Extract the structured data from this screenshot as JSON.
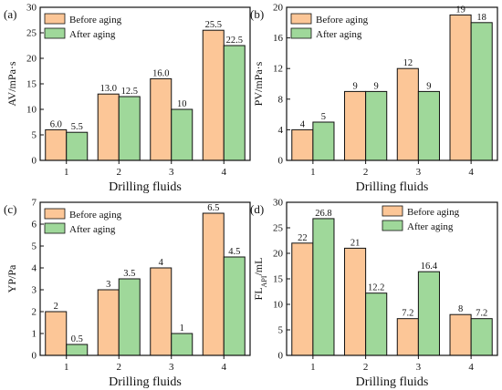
{
  "colors": {
    "before": "#FCC697",
    "after": "#9FD89A",
    "frame": "#111111"
  },
  "chart_data": [
    {
      "type": "bar",
      "panel_label": "(a)",
      "ylabel": "AV/mPa·s",
      "xlabel": "Drilling fluids",
      "categories": [
        "1",
        "2",
        "3",
        "4"
      ],
      "ylim": [
        0,
        30
      ],
      "yticks": [
        "0",
        "5",
        "10",
        "15",
        "20",
        "25",
        "30"
      ],
      "legend_position": "top-left",
      "series": [
        {
          "name": "Before aging",
          "values": [
            6.0,
            13.0,
            16.0,
            25.5
          ],
          "labels": [
            "6.0",
            "13.0",
            "16.0",
            "25.5"
          ]
        },
        {
          "name": "After aging",
          "values": [
            5.5,
            12.5,
            10,
            22.5
          ],
          "labels": [
            "5.5",
            "12.5",
            "10",
            "22.5"
          ]
        }
      ]
    },
    {
      "type": "bar",
      "panel_label": "(b)",
      "ylabel": "PV/mPa·s",
      "xlabel": "Drilling fluids",
      "categories": [
        "1",
        "2",
        "3",
        "4"
      ],
      "ylim": [
        0,
        20
      ],
      "yticks": [
        "0",
        "4",
        "8",
        "12",
        "16",
        "20"
      ],
      "legend_position": "top-left",
      "series": [
        {
          "name": "Before aging",
          "values": [
            4,
            9,
            12,
            19
          ],
          "labels": [
            "4",
            "9",
            "12",
            "19"
          ]
        },
        {
          "name": "After aging",
          "values": [
            5,
            9,
            9,
            18
          ],
          "labels": [
            "5",
            "9",
            "9",
            "18"
          ]
        }
      ]
    },
    {
      "type": "bar",
      "panel_label": "(c)",
      "ylabel": "YP/Pa",
      "xlabel": "Drilling fluids",
      "categories": [
        "1",
        "2",
        "3",
        "4"
      ],
      "ylim": [
        0,
        7
      ],
      "yticks": [
        "0",
        "1",
        "2",
        "3",
        "4",
        "5",
        "6",
        "7"
      ],
      "legend_position": "top-left",
      "series": [
        {
          "name": "Before aging",
          "values": [
            2,
            3,
            4,
            6.5
          ],
          "labels": [
            "2",
            "3",
            "4",
            "6.5"
          ]
        },
        {
          "name": "After aging",
          "values": [
            0.5,
            3.5,
            1,
            4.5
          ],
          "labels": [
            "0.5",
            "3.5",
            "1",
            "4.5"
          ]
        }
      ]
    },
    {
      "type": "bar",
      "panel_label": "(d)",
      "ylabel": "FL",
      "ylabel_sub": "API",
      "ylabel_tail": "/mL",
      "xlabel": "Drilling fluids",
      "categories": [
        "1",
        "2",
        "3",
        "4"
      ],
      "ylim": [
        0,
        30
      ],
      "yticks": [
        "0",
        "5",
        "10",
        "15",
        "20",
        "25",
        "30"
      ],
      "legend_position": "top-right",
      "series": [
        {
          "name": "Before aging",
          "values": [
            22,
            21,
            7.2,
            8
          ],
          "labels": [
            "22",
            "21",
            "7.2",
            "8"
          ]
        },
        {
          "name": "After aging",
          "values": [
            26.8,
            12.2,
            16.4,
            7.2
          ],
          "labels": [
            "26.8",
            "12.2",
            "16.4",
            "7.2"
          ]
        }
      ]
    }
  ]
}
